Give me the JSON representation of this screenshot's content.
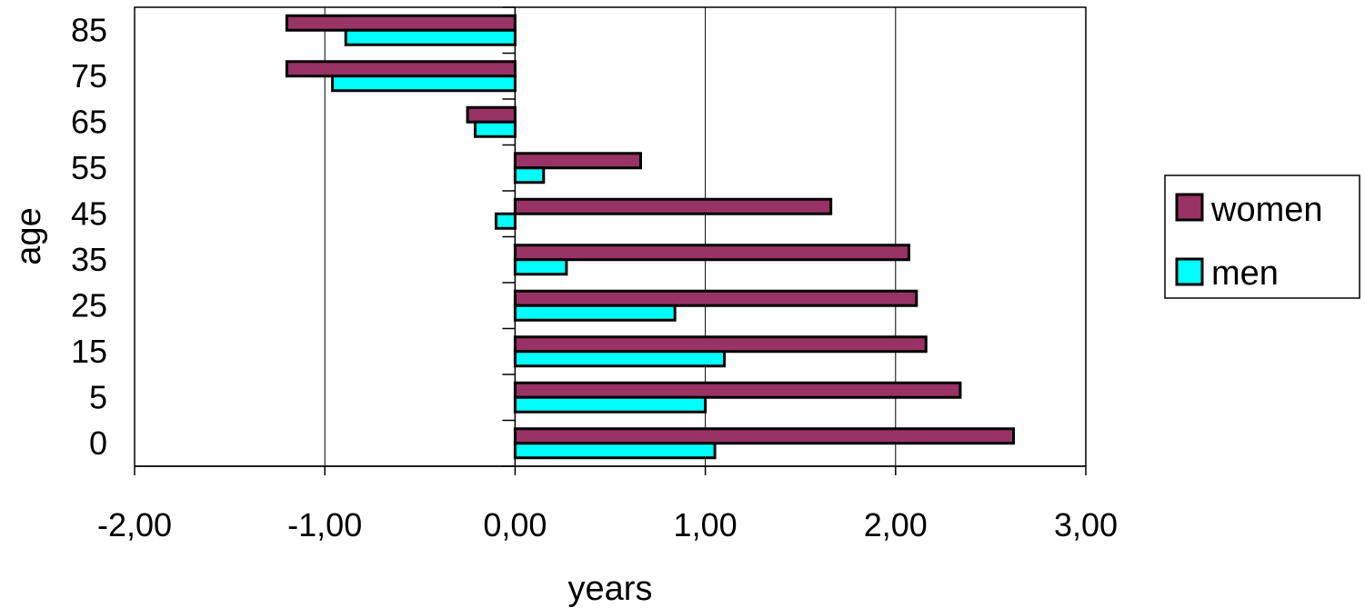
{
  "chart_data": {
    "type": "bar",
    "orientation": "horizontal",
    "title": "",
    "xlabel": "years",
    "ylabel": "age",
    "categories": [
      "0",
      "5",
      "15",
      "25",
      "35",
      "45",
      "55",
      "65",
      "75",
      "85"
    ],
    "series": [
      {
        "name": "women",
        "color": "#993366",
        "values": [
          2.62,
          2.34,
          2.16,
          2.11,
          2.07,
          1.66,
          0.66,
          -0.25,
          -1.2,
          -1.2
        ]
      },
      {
        "name": "men",
        "color": "#00FFFF",
        "values": [
          1.05,
          1.0,
          1.1,
          0.84,
          0.27,
          -0.1,
          0.15,
          -0.21,
          -0.96,
          -0.89
        ]
      }
    ],
    "xlim": [
      -2.0,
      3.0
    ],
    "xticks": [
      "-2,00",
      "-1,00",
      "0,00",
      "1,00",
      "2,00",
      "3,00"
    ],
    "grid": "vertical",
    "legend_position": "right"
  }
}
